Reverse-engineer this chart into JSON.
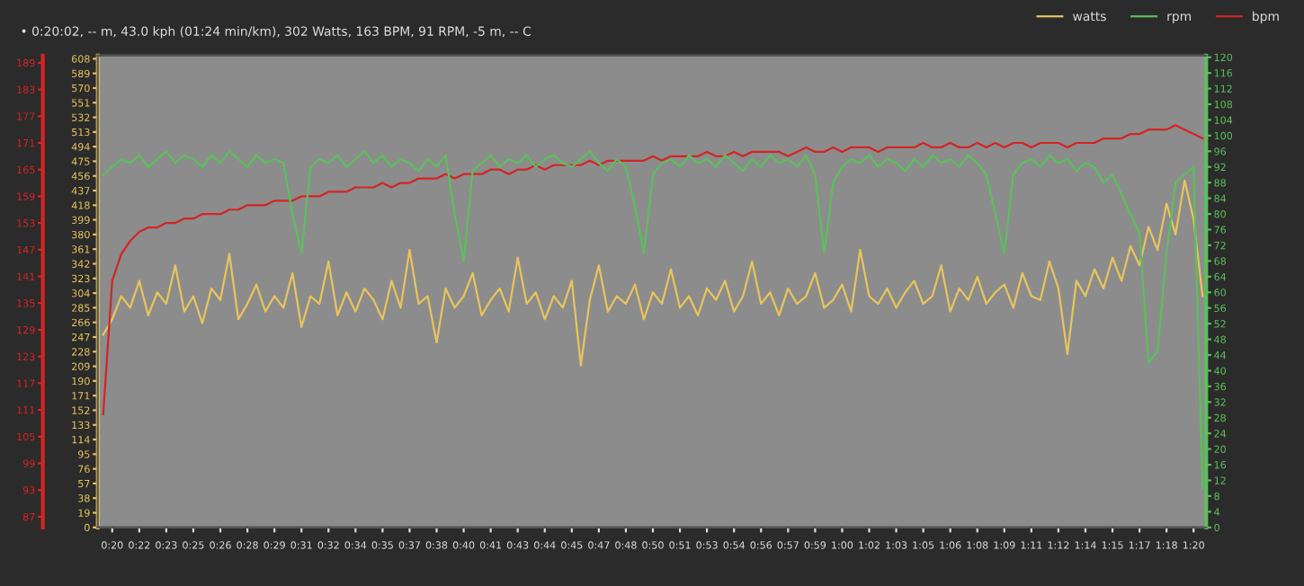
{
  "chart_data": {
    "type": "line",
    "title": "• 0:20:02, -- m, 43.0 kph (01:24 min/km), 302 Watts, 163 BPM, 91 RPM, -5 m, -- C",
    "legend": "top right",
    "grid": false,
    "x": [
      19.5,
      20,
      20.5,
      21,
      21.5,
      22,
      22.5,
      23,
      23.5,
      24,
      24.5,
      25,
      25.5,
      26,
      26.5,
      27,
      27.5,
      28,
      28.5,
      29,
      29.5,
      30,
      30.5,
      31,
      31.5,
      32,
      32.5,
      33,
      33.5,
      34,
      34.5,
      35,
      35.5,
      36,
      36.5,
      37,
      37.5,
      38,
      38.5,
      39,
      39.5,
      40,
      40.5,
      41,
      41.5,
      42,
      42.5,
      43,
      43.5,
      44,
      44.5,
      45,
      45.5,
      46,
      46.5,
      47,
      47.5,
      48,
      48.5,
      49,
      49.5,
      50,
      50.5,
      51,
      51.5,
      52,
      52.5,
      53,
      53.5,
      54,
      54.5,
      55,
      55.5,
      56,
      56.5,
      57,
      57.5,
      58,
      58.5,
      59,
      59.5,
      60,
      60.5,
      61,
      61.5,
      62,
      62.5,
      63,
      63.5,
      64,
      64.5,
      65,
      65.5,
      66,
      66.5,
      67,
      67.5,
      68,
      68.5,
      69,
      69.5,
      70,
      70.5,
      71,
      71.5,
      72,
      72.5,
      73,
      73.5,
      74,
      74.5,
      75,
      75.5,
      76,
      76.5,
      77,
      77.5,
      78,
      78.5,
      79,
      79.5,
      80,
      80.5
    ],
    "xlim": [
      19.2,
      80.7
    ],
    "xticks": [
      {
        "value": 20,
        "label": "0:20"
      },
      {
        "value": 21.5,
        "label": "0:22"
      },
      {
        "value": 23,
        "label": "0:23"
      },
      {
        "value": 24.5,
        "label": "0:25"
      },
      {
        "value": 26,
        "label": "0:26"
      },
      {
        "value": 27.5,
        "label": "0:28"
      },
      {
        "value": 29,
        "label": "0:29"
      },
      {
        "value": 30.5,
        "label": "0:31"
      },
      {
        "value": 32,
        "label": "0:32"
      },
      {
        "value": 33.5,
        "label": "0:34"
      },
      {
        "value": 35,
        "label": "0:35"
      },
      {
        "value": 36.5,
        "label": "0:37"
      },
      {
        "value": 38,
        "label": "0:38"
      },
      {
        "value": 39.5,
        "label": "0:40"
      },
      {
        "value": 41,
        "label": "0:41"
      },
      {
        "value": 42.5,
        "label": "0:43"
      },
      {
        "value": 44,
        "label": "0:44"
      },
      {
        "value": 45.5,
        "label": "0:45"
      },
      {
        "value": 47,
        "label": "0:47"
      },
      {
        "value": 48.5,
        "label": "0:48"
      },
      {
        "value": 50,
        "label": "0:50"
      },
      {
        "value": 51.5,
        "label": "0:51"
      },
      {
        "value": 53,
        "label": "0:53"
      },
      {
        "value": 54.5,
        "label": "0:54"
      },
      {
        "value": 56,
        "label": "0:56"
      },
      {
        "value": 57.5,
        "label": "0:57"
      },
      {
        "value": 59,
        "label": "0:59"
      },
      {
        "value": 60.5,
        "label": "1:00"
      },
      {
        "value": 62,
        "label": "1:02"
      },
      {
        "value": 63.5,
        "label": "1:03"
      },
      {
        "value": 65,
        "label": "1:05"
      },
      {
        "value": 66.5,
        "label": "1:06"
      },
      {
        "value": 68,
        "label": "1:08"
      },
      {
        "value": 69.5,
        "label": "1:09"
      },
      {
        "value": 71,
        "label": "1:11"
      },
      {
        "value": 72.5,
        "label": "1:12"
      },
      {
        "value": 74,
        "label": "1:14"
      },
      {
        "value": 75.5,
        "label": "1:15"
      },
      {
        "value": 77,
        "label": "1:17"
      },
      {
        "value": 78.5,
        "label": "1:18"
      },
      {
        "value": 80,
        "label": "1:20"
      }
    ],
    "ylim": [
      0,
      612
    ],
    "yticks": [
      0,
      19,
      38,
      57,
      76,
      95,
      114,
      133,
      152,
      171,
      190,
      209,
      228,
      247,
      266,
      285,
      304,
      323,
      342,
      361,
      380,
      399,
      418,
      437,
      456,
      475,
      494,
      513,
      532,
      551,
      570,
      589,
      608
    ],
    "y2lim": [
      84.6,
      190.6
    ],
    "y2ticks": [
      87,
      93,
      99,
      105,
      111,
      117,
      123,
      129,
      135,
      141,
      147,
      153,
      159,
      165,
      171,
      177,
      183,
      189
    ],
    "y3lim": [
      0,
      120.4
    ],
    "y3ticks": [
      0,
      4,
      8,
      12,
      16,
      20,
      24,
      28,
      32,
      36,
      40,
      44,
      48,
      52,
      56,
      60,
      64,
      68,
      72,
      76,
      80,
      84,
      88,
      92,
      96,
      100,
      104,
      108,
      112,
      116,
      120
    ],
    "series": [
      {
        "name": "watts",
        "color": "#e8c45c",
        "values": [
          250,
          270,
          300,
          285,
          320,
          275,
          305,
          290,
          340,
          280,
          300,
          265,
          310,
          295,
          355,
          270,
          290,
          315,
          280,
          300,
          285,
          330,
          260,
          300,
          290,
          345,
          275,
          305,
          280,
          310,
          295,
          270,
          320,
          285,
          360,
          290,
          300,
          240,
          310,
          285,
          300,
          330,
          275,
          295,
          310,
          280,
          350,
          290,
          305,
          270,
          300,
          285,
          320,
          210,
          295,
          340,
          280,
          300,
          290,
          315,
          270,
          305,
          290,
          335,
          285,
          300,
          275,
          310,
          295,
          320,
          280,
          300,
          345,
          290,
          305,
          275,
          310,
          290,
          300,
          330,
          285,
          295,
          315,
          280,
          360,
          300,
          290,
          310,
          285,
          305,
          320,
          290,
          300,
          340,
          280,
          310,
          295,
          325,
          290,
          305,
          315,
          285,
          330,
          300,
          295,
          345,
          310,
          225,
          320,
          300,
          335,
          310,
          350,
          320,
          365,
          340,
          390,
          360,
          420,
          380,
          450,
          400,
          300
        ]
      },
      {
        "name": "rpm",
        "color": "#5cbf5c",
        "axis": "y3",
        "values": [
          90,
          92,
          94,
          93,
          95,
          92,
          94,
          96,
          93,
          95,
          94,
          92,
          95,
          93,
          96,
          94,
          92,
          95,
          93,
          94,
          93,
          80,
          70,
          92,
          94,
          93,
          95,
          92,
          94,
          96,
          93,
          95,
          92,
          94,
          93,
          91,
          94,
          92,
          95,
          80,
          68,
          91,
          93,
          95,
          92,
          94,
          93,
          95,
          92,
          94,
          95,
          93,
          92,
          94,
          96,
          93,
          91,
          94,
          92,
          82,
          70,
          90,
          93,
          94,
          92,
          95,
          93,
          94,
          92,
          95,
          93,
          91,
          94,
          92,
          95,
          93,
          94,
          92,
          95,
          90,
          70,
          88,
          92,
          94,
          93,
          95,
          92,
          94,
          93,
          91,
          94,
          92,
          95,
          93,
          94,
          92,
          95,
          93,
          90,
          80,
          70,
          90,
          93,
          94,
          92,
          95,
          93,
          94,
          91,
          93,
          92,
          88,
          90,
          85,
          80,
          75,
          42,
          45,
          70,
          88,
          90,
          92,
          10
        ]
      },
      {
        "name": "bpm",
        "color": "#d42424",
        "axis": "y2",
        "values": [
          110,
          140,
          146,
          149,
          151,
          152,
          152,
          153,
          153,
          154,
          154,
          155,
          155,
          155,
          156,
          156,
          157,
          157,
          157,
          158,
          158,
          158,
          159,
          159,
          159,
          160,
          160,
          160,
          161,
          161,
          161,
          162,
          161,
          162,
          162,
          163,
          163,
          163,
          164,
          163,
          164,
          164,
          164,
          165,
          165,
          164,
          165,
          165,
          166,
          165,
          166,
          166,
          166,
          166,
          167,
          166,
          167,
          167,
          167,
          167,
          167,
          168,
          167,
          168,
          168,
          168,
          168,
          169,
          168,
          168,
          169,
          168,
          169,
          169,
          169,
          169,
          168,
          169,
          170,
          169,
          169,
          170,
          169,
          170,
          170,
          170,
          169,
          170,
          170,
          170,
          170,
          171,
          170,
          170,
          171,
          170,
          170,
          171,
          170,
          171,
          170,
          171,
          171,
          170,
          171,
          171,
          171,
          170,
          171,
          171,
          171,
          172,
          172,
          172,
          173,
          173,
          174,
          174,
          174,
          175,
          174,
          173,
          172
        ]
      }
    ]
  }
}
